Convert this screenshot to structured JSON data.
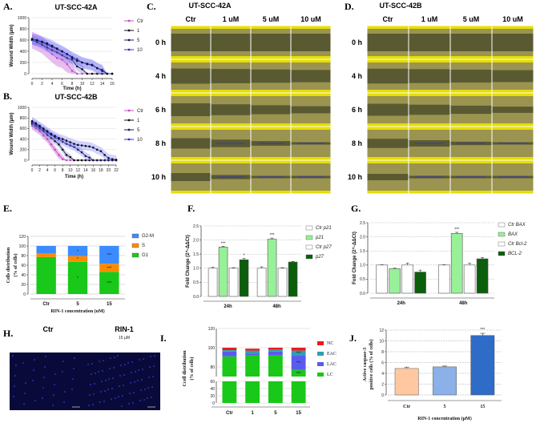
{
  "panels": {
    "A": {
      "label": "A.",
      "title": "UT-SCC-42A"
    },
    "B": {
      "label": "B.",
      "title": "UT-SCC-42B"
    },
    "C": {
      "label": "C.",
      "title": "UT-SCC-42A"
    },
    "D": {
      "label": "D.",
      "title": "UT-SCC-42B"
    },
    "E": {
      "label": "E."
    },
    "F": {
      "label": "F."
    },
    "G": {
      "label": "G."
    },
    "H": {
      "label": "H.",
      "ctr": "Ctr",
      "treated": "RIN-1",
      "dose": "15 µM"
    },
    "I": {
      "label": "I."
    },
    "J": {
      "label": "J."
    }
  },
  "micrographs": {
    "columns": [
      "Ctr",
      "1 uM",
      "5 uM",
      "10 uM"
    ],
    "rows": [
      "0 h",
      "4 h",
      "6 h",
      "8 h",
      "10 h"
    ]
  },
  "colors": {
    "yellow": "#e6de00",
    "wound": "#5a5a32",
    "ctr": "#c050c0",
    "blue": "#3030d0"
  },
  "chart_data": [
    {
      "type": "line",
      "title": "UT-SCC-42A",
      "xlabel": "Time (h)",
      "ylabel": "Wound Width (µm)",
      "xlim": [
        0,
        16
      ],
      "ylim": [
        0,
        1000
      ],
      "xticks": [
        "0",
        "2",
        "4",
        "6",
        "8",
        "10",
        "12",
        "14",
        "16"
      ],
      "yticks": [
        "0",
        "200",
        "400",
        "600",
        "800",
        "1000"
      ],
      "x": [
        0,
        1,
        2,
        3,
        4,
        5,
        6,
        7,
        8,
        9,
        10,
        11,
        12,
        13,
        14,
        15,
        16
      ],
      "series": [
        {
          "name": "Ctr",
          "color": "#c050c0",
          "band": 150,
          "values": [
            600,
            560,
            510,
            430,
            350,
            280,
            250,
            170,
            50,
            0,
            0,
            0,
            0,
            0,
            0,
            0,
            0
          ]
        },
        {
          "name": "1",
          "color": "#111111",
          "band": 80,
          "values": [
            600,
            560,
            520,
            470,
            420,
            380,
            330,
            280,
            250,
            130,
            80,
            0,
            0,
            0,
            0,
            0,
            0
          ]
        },
        {
          "name": "5",
          "color": "#1a1a60",
          "band": 90,
          "values": [
            610,
            590,
            560,
            520,
            480,
            440,
            400,
            350,
            300,
            260,
            200,
            180,
            160,
            100,
            70,
            0,
            0
          ]
        },
        {
          "name": "10",
          "color": "#3030d0",
          "band": 100,
          "values": [
            620,
            600,
            570,
            540,
            500,
            450,
            400,
            350,
            280,
            230,
            200,
            170,
            150,
            100,
            50,
            0,
            0
          ]
        }
      ]
    },
    {
      "type": "line",
      "title": "UT-SCC-42B",
      "xlabel": "Time (h)",
      "ylabel": "Wound Width (µm)",
      "xlim": [
        0,
        22
      ],
      "ylim": [
        0,
        1000
      ],
      "xticks": [
        "0",
        "2",
        "4",
        "6",
        "8",
        "10",
        "12",
        "14",
        "16",
        "18",
        "20",
        "22"
      ],
      "yticks": [
        "0",
        "200",
        "400",
        "600",
        "800",
        "1000"
      ],
      "x": [
        0,
        1,
        2,
        3,
        4,
        5,
        6,
        7,
        8,
        9,
        10,
        11,
        12,
        13,
        14,
        15,
        16,
        17,
        18,
        19,
        20,
        21,
        22
      ],
      "series": [
        {
          "name": "Ctr",
          "color": "#c050c0",
          "band": 70,
          "values": [
            650,
            600,
            550,
            470,
            400,
            300,
            200,
            100,
            20,
            0,
            0,
            0,
            0,
            0,
            0,
            0,
            0,
            0,
            0,
            0,
            0,
            0,
            0
          ]
        },
        {
          "name": "1",
          "color": "#111111",
          "band": 60,
          "values": [
            690,
            650,
            600,
            550,
            480,
            420,
            360,
            300,
            200,
            100,
            60,
            0,
            0,
            0,
            0,
            0,
            0,
            0,
            0,
            0,
            0,
            0,
            0
          ]
        },
        {
          "name": "5",
          "color": "#1a1a60",
          "band": 70,
          "values": [
            720,
            680,
            630,
            580,
            530,
            480,
            430,
            400,
            350,
            310,
            280,
            250,
            200,
            150,
            80,
            50,
            0,
            0,
            0,
            0,
            0,
            0,
            0
          ]
        },
        {
          "name": "10",
          "color": "#3030d0",
          "band": 80,
          "values": [
            740,
            700,
            650,
            600,
            550,
            500,
            460,
            420,
            400,
            370,
            340,
            310,
            290,
            280,
            270,
            260,
            240,
            200,
            170,
            100,
            40,
            20,
            10
          ]
        }
      ]
    },
    {
      "type": "bar",
      "stacked": true,
      "ylabel": "Cells distribution",
      "ylabel2": "(% of cells)",
      "xlabel": "RIN-1 concentration (uM)",
      "ylim": [
        0,
        120
      ],
      "yticks": [
        "0",
        "20",
        "40",
        "60",
        "80",
        "100",
        "120"
      ],
      "categories": [
        "Ctr",
        "5",
        "15"
      ],
      "series": [
        {
          "name": "G1",
          "color": "#19c819",
          "values": [
            77,
            67,
            46
          ],
          "marks": [
            "",
            "*",
            "***"
          ]
        },
        {
          "name": "S",
          "color": "#ff8a00",
          "values": [
            8,
            12,
            17
          ],
          "marks": [
            "",
            "*",
            "***"
          ]
        },
        {
          "name": "G2-M",
          "color": "#3c8cff",
          "values": [
            15,
            21,
            37
          ],
          "marks": [
            "",
            "*",
            "***"
          ]
        }
      ]
    },
    {
      "type": "bar",
      "ylabel": "Fold Change (2^-ΔΔCt)",
      "ylim": [
        0,
        2.5
      ],
      "yticks": [
        "0.0",
        "0.5",
        "1.0",
        "1.5",
        "2.0",
        "2.5"
      ],
      "categories": [
        "24h",
        "48h"
      ],
      "series": [
        {
          "name": "Ctr p21",
          "color": "#ffffff",
          "values": [
            1.0,
            1.0
          ],
          "err": [
            0.03,
            0.05
          ],
          "marks": [
            "",
            ""
          ]
        },
        {
          "name": "p21",
          "color": "#98f098",
          "values": [
            1.75,
            2.03
          ],
          "err": [
            0.03,
            0.04
          ],
          "marks": [
            "***",
            "***"
          ]
        },
        {
          "name": "Ctr p27",
          "color": "#ffffff",
          "values": [
            1.0,
            1.0
          ],
          "err": [
            0.02,
            0.02
          ],
          "marks": [
            "",
            ""
          ]
        },
        {
          "name": "p27",
          "color": "#0b5e0b",
          "values": [
            1.3,
            1.22
          ],
          "err": [
            0.05,
            0.02
          ],
          "marks": [
            "*",
            ""
          ]
        }
      ]
    },
    {
      "type": "bar",
      "ylabel": "Fold Change (2^-ΔΔCt)",
      "ylim": [
        0,
        2.5
      ],
      "yticks": [
        "0.0",
        "0.5",
        "1.0",
        "1.5",
        "2.0",
        "2.5"
      ],
      "categories": [
        "24h",
        "48h"
      ],
      "series": [
        {
          "name": "Ctr BAX",
          "color": "#ffffff",
          "values": [
            1.0,
            1.0
          ],
          "err": [
            0.01,
            0.01
          ],
          "marks": [
            "",
            ""
          ]
        },
        {
          "name": "BAX",
          "color": "#98f098",
          "values": [
            0.87,
            2.12
          ],
          "err": [
            0.02,
            0.04
          ],
          "marks": [
            "",
            "***"
          ]
        },
        {
          "name": "Ctr Bcl-2",
          "color": "#ffffff",
          "values": [
            1.0,
            1.0
          ],
          "err": [
            0.07,
            0.06
          ],
          "marks": [
            "",
            ""
          ]
        },
        {
          "name": "BCL-2",
          "color": "#0b5e0b",
          "values": [
            0.75,
            1.22
          ],
          "err": [
            0.07,
            0.05
          ],
          "marks": [
            "",
            ""
          ]
        }
      ]
    },
    {
      "type": "bar",
      "stacked": true,
      "broken_axis": [
        60,
        70
      ],
      "ylabel": "Ccell distribution",
      "ylabel2": "(% of cells)",
      "ylim": [
        0,
        120
      ],
      "yticks_low": [
        "0",
        "20",
        "40",
        "60"
      ],
      "yticks_high": [
        "80",
        "100",
        "120"
      ],
      "categories": [
        "Ctr",
        "1",
        "5",
        "15"
      ],
      "series": [
        {
          "name": "LC",
          "color": "#19c819",
          "values": [
            91,
            92,
            92,
            77
          ],
          "marks": [
            "",
            "",
            "",
            "***"
          ]
        },
        {
          "name": "LAC",
          "color": "#5a5af0",
          "values": [
            5,
            2,
            4,
            15
          ],
          "marks": [
            "",
            "",
            "",
            "***"
          ]
        },
        {
          "name": "EAC",
          "color": "#2aa0b0",
          "values": [
            1.5,
            3,
            2,
            5
          ],
          "marks": [
            "",
            "",
            "",
            "***"
          ]
        },
        {
          "name": "NC",
          "color": "#f01818",
          "values": [
            2.5,
            2,
            2,
            3
          ],
          "marks": [
            "",
            "",
            "",
            ""
          ]
        }
      ]
    },
    {
      "type": "bar",
      "ylabel": "Active caspase-3",
      "ylabel2": "positive cells (% of cells)",
      "xlabel": "RIN-1 concentration (µM)",
      "ylim": [
        0,
        12
      ],
      "yticks": [
        "0",
        "2",
        "4",
        "6",
        "8",
        "10",
        "12"
      ],
      "categories": [
        "Ctr",
        "5",
        "15"
      ],
      "values": [
        4.9,
        5.2,
        11.0
      ],
      "err": [
        0.25,
        0.15,
        0.4
      ],
      "colors": [
        "#ffc8a0",
        "#8cb0e8",
        "#2f6cc8"
      ],
      "marks": [
        "",
        "",
        "***"
      ]
    }
  ]
}
